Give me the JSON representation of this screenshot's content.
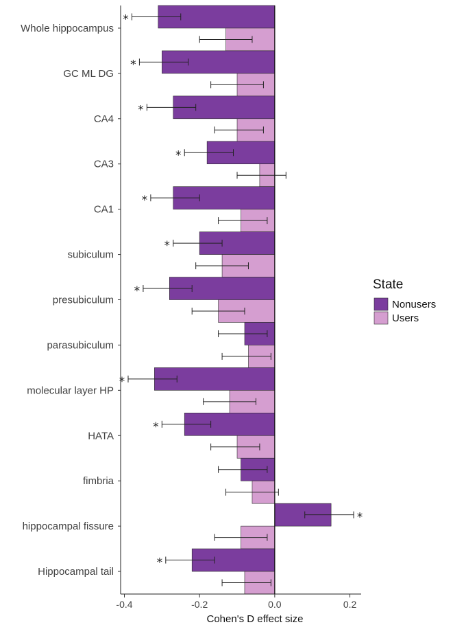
{
  "chart_data": {
    "type": "bar",
    "orientation": "horizontal",
    "xlabel": "Cohen's D effect size",
    "ylabel": "",
    "xlim": [
      -0.41,
      0.23
    ],
    "xticks": [
      -0.4,
      -0.2,
      0.0,
      0.2
    ],
    "xtick_labels": [
      "-0.4",
      "-0.2",
      "0.0",
      "0.2"
    ],
    "grid": false,
    "legend": {
      "title": "State",
      "position": "right"
    },
    "categories": [
      "Whole hippocampus",
      "GC ML DG",
      "CA4",
      "CA3",
      "CA1",
      "subiculum",
      "presubiculum",
      "parasubiculum",
      "molecular layer HP",
      "HATA",
      "fimbria",
      "hippocampal fissure",
      "Hippocampal tail"
    ],
    "series": [
      {
        "name": "Nonusers",
        "color": "#7b3d9e",
        "values": [
          -0.31,
          -0.3,
          -0.27,
          -0.18,
          -0.27,
          -0.2,
          -0.28,
          -0.08,
          -0.32,
          -0.24,
          -0.09,
          0.15,
          -0.22
        ],
        "error_low": [
          -0.38,
          -0.36,
          -0.34,
          -0.24,
          -0.33,
          -0.27,
          -0.35,
          -0.15,
          -0.39,
          -0.3,
          -0.15,
          0.08,
          -0.29
        ],
        "error_high": [
          -0.25,
          -0.23,
          -0.21,
          -0.11,
          -0.2,
          -0.14,
          -0.22,
          -0.02,
          -0.26,
          -0.17,
          -0.02,
          0.21,
          -0.16
        ],
        "significant": [
          true,
          true,
          true,
          true,
          true,
          true,
          true,
          false,
          true,
          true,
          false,
          true,
          true
        ]
      },
      {
        "name": "Users",
        "color": "#d59ed0",
        "values": [
          -0.13,
          -0.1,
          -0.1,
          -0.04,
          -0.09,
          -0.14,
          -0.15,
          -0.07,
          -0.12,
          -0.1,
          -0.06,
          -0.09,
          -0.08
        ],
        "error_low": [
          -0.2,
          -0.17,
          -0.16,
          -0.1,
          -0.15,
          -0.21,
          -0.22,
          -0.14,
          -0.19,
          -0.17,
          -0.13,
          -0.16,
          -0.14
        ],
        "error_high": [
          -0.06,
          -0.03,
          -0.03,
          0.03,
          -0.02,
          -0.07,
          -0.08,
          -0.01,
          -0.05,
          -0.04,
          0.01,
          -0.02,
          -0.01
        ],
        "significant": [
          false,
          false,
          false,
          false,
          false,
          false,
          false,
          false,
          false,
          false,
          false,
          false,
          false
        ]
      }
    ],
    "annotation_symbol": "*"
  }
}
